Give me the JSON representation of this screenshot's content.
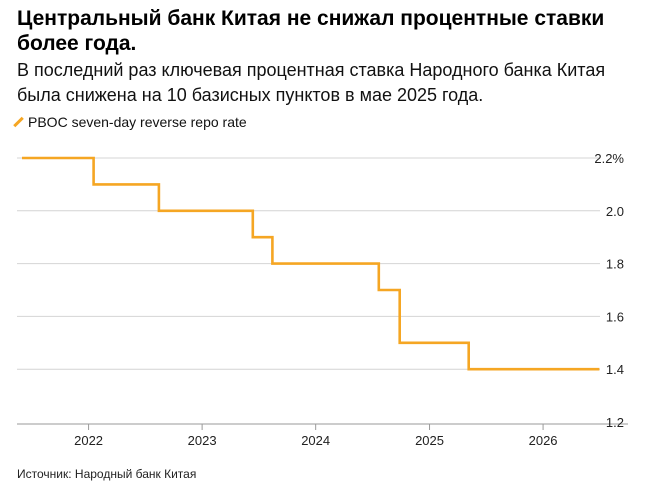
{
  "header": {
    "title": "Центральный банк Китая не снижал процентные ставки более года.",
    "subtitle": "В последний раз ключевая процентная ставка Народного банка Китая была снижена на 10 базисных пунктов в мае 2025 года."
  },
  "source": "Источник: Народный банк Китая",
  "colors": {
    "line": "#F5A623",
    "grid": "#d4d4d4",
    "axis": "#9a9a9a"
  },
  "chart_data": {
    "type": "line",
    "step": true,
    "legend_position": "top-left",
    "grid": true,
    "series": [
      {
        "name": "PBOC seven-day reverse repo rate",
        "points": [
          {
            "x": "2021-06-01",
            "y": 2.2
          },
          {
            "x": "2022-01-17",
            "y": 2.1
          },
          {
            "x": "2022-08-15",
            "y": 2.0
          },
          {
            "x": "2023-06-13",
            "y": 1.9
          },
          {
            "x": "2023-08-15",
            "y": 1.8
          },
          {
            "x": "2024-07-22",
            "y": 1.7
          },
          {
            "x": "2024-09-27",
            "y": 1.5
          },
          {
            "x": "2025-05-07",
            "y": 1.4
          },
          {
            "x": "2026-07-01",
            "y": 1.4
          }
        ]
      }
    ],
    "x_ticks": [
      "2022",
      "2023",
      "2024",
      "2025",
      "2026"
    ],
    "y_ticks": [
      "2.2%",
      "2.0",
      "1.8",
      "1.6",
      "1.4",
      "1.2"
    ],
    "ylim": [
      1.2,
      2.2
    ],
    "xlim": [
      "2021-06-01",
      "2026-10-01"
    ]
  }
}
